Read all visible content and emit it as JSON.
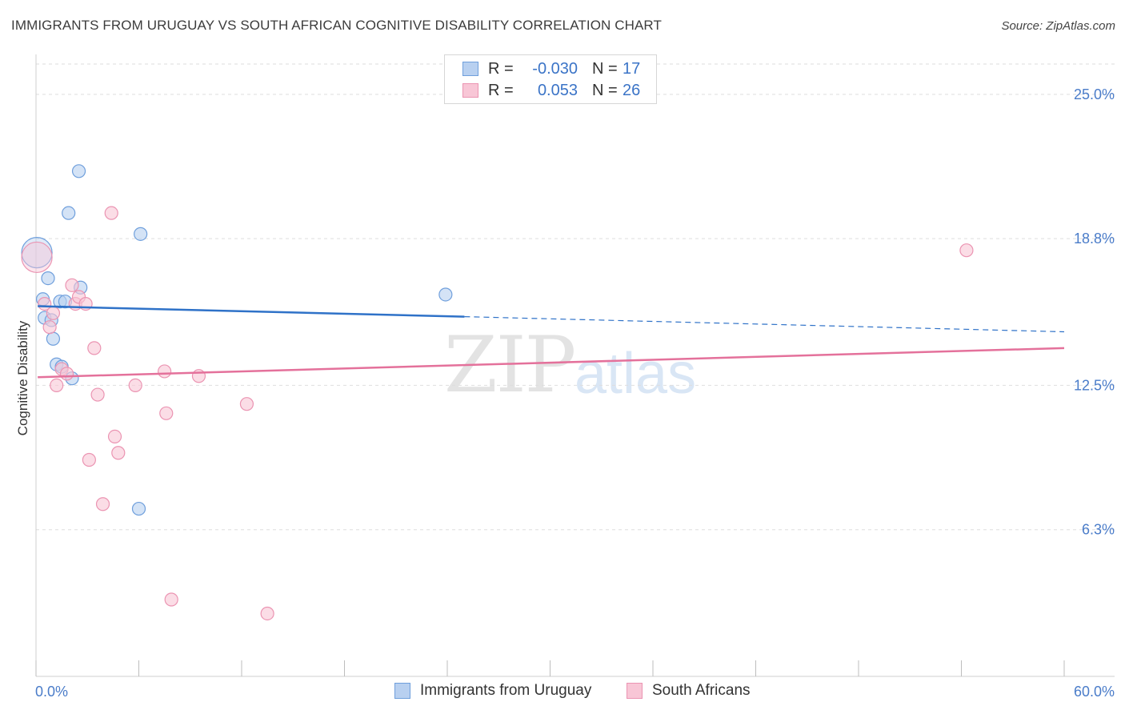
{
  "title": "IMMIGRANTS FROM URUGUAY VS SOUTH AFRICAN COGNITIVE DISABILITY CORRELATION CHART",
  "source": "Source: ZipAtlas.com",
  "watermark": {
    "zip": "ZIP",
    "atlas": "atlas"
  },
  "legend": {
    "rows": [
      {
        "r_label": "R =",
        "r_value": "-0.030",
        "n_label": "N =",
        "n_value": "17"
      },
      {
        "r_label": "R =",
        "r_value": "0.053",
        "n_label": "N =",
        "n_value": "26"
      }
    ]
  },
  "bottom_legend": {
    "series1": "Immigrants from Uruguay",
    "series2": "South Africans"
  },
  "colors": {
    "blue_fill": "#b8d0f0",
    "blue_stroke": "#6f9fdc",
    "blue_line": "#2f72c8",
    "pink_fill": "#f8c6d6",
    "pink_stroke": "#eb94b2",
    "pink_line": "#e4719b",
    "grid": "#dedede",
    "axis_text": "#4a7cc9"
  },
  "chart_data": {
    "type": "scatter",
    "title": "IMMIGRANTS FROM URUGUAY VS SOUTH AFRICAN COGNITIVE DISABILITY CORRELATION CHART",
    "xlabel": "",
    "ylabel": "Cognitive Disability",
    "xlim": [
      0,
      60
    ],
    "ylim": [
      0,
      26.3
    ],
    "x_tick_labels": [
      "0.0%",
      "60.0%"
    ],
    "y_ticks": [
      6.3,
      12.5,
      18.8,
      25.0
    ],
    "y_tick_labels": [
      "6.3%",
      "12.5%",
      "18.8%",
      "25.0%"
    ],
    "grid": true,
    "legend_position": "top-center",
    "series": [
      {
        "name": "Immigrants from Uruguay",
        "color": "blue",
        "points": [
          {
            "x": 0.05,
            "y": 18.2,
            "size": "large"
          },
          {
            "x": 0.4,
            "y": 16.2
          },
          {
            "x": 0.5,
            "y": 15.4
          },
          {
            "x": 0.7,
            "y": 17.1
          },
          {
            "x": 0.9,
            "y": 15.3
          },
          {
            "x": 1.0,
            "y": 14.5
          },
          {
            "x": 1.2,
            "y": 13.4
          },
          {
            "x": 1.4,
            "y": 16.1
          },
          {
            "x": 1.5,
            "y": 13.3
          },
          {
            "x": 1.7,
            "y": 16.1
          },
          {
            "x": 1.9,
            "y": 19.9
          },
          {
            "x": 2.1,
            "y": 12.8
          },
          {
            "x": 2.5,
            "y": 21.7
          },
          {
            "x": 2.6,
            "y": 16.7
          },
          {
            "x": 6.0,
            "y": 7.2
          },
          {
            "x": 6.1,
            "y": 19.0
          },
          {
            "x": 23.9,
            "y": 16.4
          }
        ],
        "trend": {
          "x_start": 0.1,
          "y_start": 15.9,
          "x_solid_end": 25.0,
          "y_solid_end": 15.45,
          "x_end": 60.0,
          "y_end": 14.8
        }
      },
      {
        "name": "South Africans",
        "color": "pink",
        "points": [
          {
            "x": 0.05,
            "y": 18.0,
            "size": "large"
          },
          {
            "x": 0.5,
            "y": 16.0
          },
          {
            "x": 0.8,
            "y": 15.0
          },
          {
            "x": 1.0,
            "y": 15.6
          },
          {
            "x": 1.2,
            "y": 12.5
          },
          {
            "x": 1.5,
            "y": 13.2
          },
          {
            "x": 1.8,
            "y": 13.0
          },
          {
            "x": 2.1,
            "y": 16.8
          },
          {
            "x": 2.3,
            "y": 16.0
          },
          {
            "x": 2.5,
            "y": 16.3
          },
          {
            "x": 2.9,
            "y": 16.0
          },
          {
            "x": 3.1,
            "y": 9.3
          },
          {
            "x": 3.4,
            "y": 14.1
          },
          {
            "x": 3.6,
            "y": 12.1
          },
          {
            "x": 3.9,
            "y": 7.4
          },
          {
            "x": 4.4,
            "y": 19.9
          },
          {
            "x": 4.6,
            "y": 10.3
          },
          {
            "x": 4.8,
            "y": 9.6
          },
          {
            "x": 5.8,
            "y": 12.5
          },
          {
            "x": 7.5,
            "y": 13.1
          },
          {
            "x": 7.6,
            "y": 11.3
          },
          {
            "x": 7.9,
            "y": 3.3
          },
          {
            "x": 9.5,
            "y": 12.9
          },
          {
            "x": 12.3,
            "y": 11.7
          },
          {
            "x": 13.5,
            "y": 2.7
          },
          {
            "x": 54.3,
            "y": 18.3
          }
        ],
        "trend": {
          "x_start": 0.1,
          "y_start": 12.85,
          "x_end": 60.0,
          "y_end": 14.1
        }
      }
    ]
  }
}
